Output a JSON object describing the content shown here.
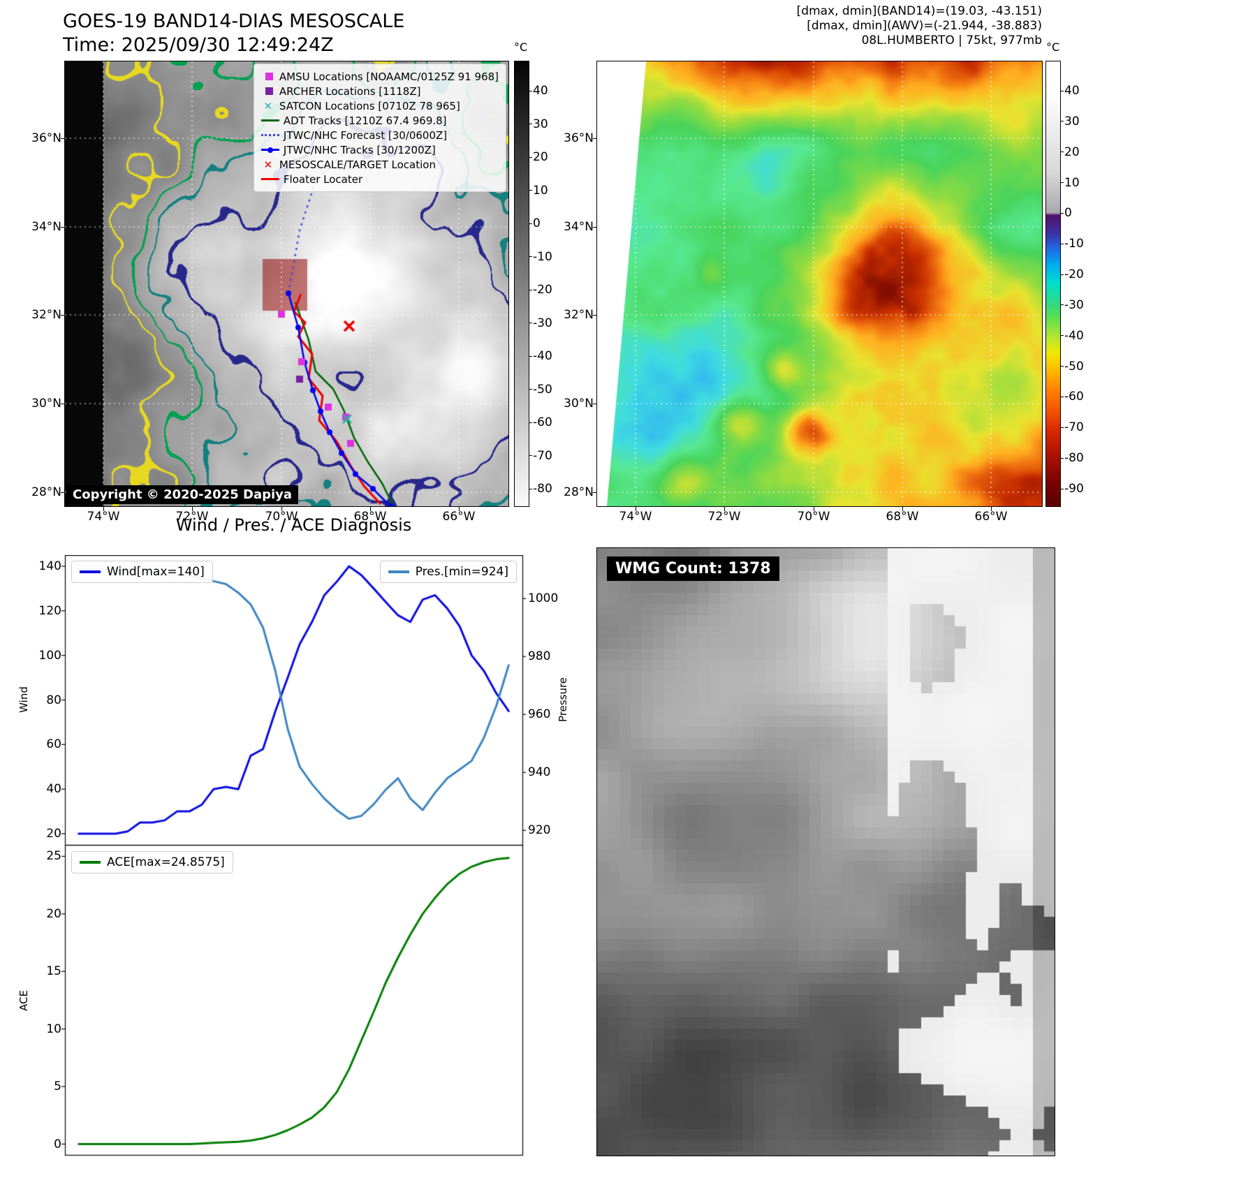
{
  "panel_tl": {
    "title_line1": "GOES-19 BAND14-DIAS MESOSCALE",
    "title_line2": "Time: 2025/09/30 12:49:24Z",
    "copyright": "Copyright © 2020-2025 Dapiya",
    "axes": {
      "lat_ticks": [
        "36°N",
        "34°N",
        "32°N",
        "30°N",
        "28°N"
      ],
      "lon_ticks": [
        "74°W",
        "72°W",
        "70°W",
        "68°W",
        "66°W"
      ]
    },
    "colorbar": {
      "unit": "°C",
      "ticks": [
        40,
        30,
        20,
        10,
        0,
        -10,
        -20,
        -30,
        -40,
        -50,
        -60,
        -70,
        -80
      ],
      "gradient": [
        [
          "0%",
          "#050505"
        ],
        [
          "100%",
          "#fafafa"
        ]
      ]
    },
    "legend": [
      {
        "id": "amsu",
        "marker": "square",
        "color": "#dd33dd",
        "label": "AMSU Locations [NOAAMC/0125Z 91 968]"
      },
      {
        "id": "archer",
        "marker": "square",
        "color": "#7a1fa2",
        "label": "ARCHER Locations [1118Z]"
      },
      {
        "id": "satcon",
        "marker": "x",
        "color": "#20b2aa",
        "label": "SATCON Locations [0710Z 78 965]"
      },
      {
        "id": "adt",
        "marker": "line",
        "color": "#006400",
        "label": "ADT Tracks [1210Z 67.4 969.8]"
      },
      {
        "id": "jtwc-forecast",
        "marker": "dotted",
        "color": "#4444dd",
        "label": "JTWC/NHC Forecast [30/0600Z]"
      },
      {
        "id": "jtwc-tracks",
        "marker": "linedot",
        "color": "#0000ee",
        "label": "JTWC/NHC Tracks [30/1200Z]"
      },
      {
        "id": "target",
        "marker": "x",
        "color": "#ee0000",
        "label": "MESOSCALE/TARGET Location"
      },
      {
        "id": "floater",
        "marker": "line",
        "color": "#ee0000",
        "label": "Floater Locater"
      }
    ]
  },
  "panel_tr": {
    "header_line1": "[dmax, dmin](BAND14)=(19.03, -43.151)",
    "header_line2": "[dmax, dmin](AWV)=(-21.944, -38.883)",
    "header_line3": "08L.HUMBERTO | 75kt, 977mb",
    "axes": {
      "lat_ticks": [
        "36°N",
        "34°N",
        "32°N",
        "30°N",
        "28°N"
      ],
      "lon_ticks": [
        "74°W",
        "72°W",
        "70°W",
        "68°W",
        "66°W"
      ]
    },
    "colorbar": {
      "unit": "°C",
      "ticks": [
        40,
        30,
        20,
        10,
        0,
        -10,
        -20,
        -30,
        -40,
        -50,
        -60,
        -70,
        -80,
        -90
      ],
      "gradient": [
        [
          "0%",
          "#ffffff"
        ],
        [
          "7%",
          "#ffffff"
        ],
        [
          "25%",
          "#d8d8d8"
        ],
        [
          "34%",
          "#a8a8b0"
        ],
        [
          "34.6%",
          "#50106a"
        ],
        [
          "39%",
          "#3a35aa"
        ],
        [
          "42%",
          "#2268e0"
        ],
        [
          "45.5%",
          "#00a8f0"
        ],
        [
          "50%",
          "#00e0cc"
        ],
        [
          "55%",
          "#38d878"
        ],
        [
          "58%",
          "#64e04c"
        ],
        [
          "62%",
          "#b4e632"
        ],
        [
          "65.5%",
          "#f0e800"
        ],
        [
          "70%",
          "#ffb400"
        ],
        [
          "74%",
          "#ff8000"
        ],
        [
          "79%",
          "#f05000"
        ],
        [
          "83%",
          "#d82800"
        ],
        [
          "89%",
          "#a81000"
        ],
        [
          "96%",
          "#700000"
        ],
        [
          "100%",
          "#5c0000"
        ]
      ]
    }
  },
  "panel_bl": {
    "title": "Wind / Pres. / ACE Diagnosis",
    "wind_legend": "Wind[max=140]",
    "pres_legend": "Pres.[min=924]",
    "ace_legend": "ACE[max=24.8575]"
  },
  "panel_br": {
    "wmg_label": "WMG Count: 1378"
  },
  "chart_data": [
    {
      "type": "line",
      "panel": "wind_pressure",
      "title": "Wind / Pres. / ACE Diagnosis",
      "x_axis": {
        "range": [
          0,
          100
        ],
        "ticks": []
      },
      "series": [
        {
          "name": "Wind[max=140]",
          "color": "#0b0bdf",
          "axis": "left",
          "ylabel": "Wind",
          "ylim": [
            15,
            145
          ],
          "yticks": [
            20,
            40,
            60,
            80,
            100,
            120,
            140
          ],
          "x": [
            3.0,
            5.7,
            8.4,
            11.1,
            13.7,
            16.4,
            19.1,
            21.8,
            24.5,
            27.2,
            29.9,
            32.5,
            35.2,
            37.9,
            40.6,
            43.3,
            46.0,
            48.7,
            51.3,
            54.0,
            56.7,
            59.4,
            62.1,
            64.8,
            67.5,
            70.1,
            72.8,
            75.5,
            78.2,
            80.9,
            83.6,
            86.3,
            88.9,
            91.6,
            94.3,
            97.0
          ],
          "values": [
            20,
            20,
            20,
            20,
            21,
            25,
            25,
            26,
            30,
            30,
            33,
            40,
            41,
            40,
            55,
            58,
            75,
            90,
            105,
            115,
            127,
            133,
            140,
            136,
            130,
            124,
            118,
            115,
            125,
            127,
            121,
            113,
            100,
            93,
            83,
            75
          ]
        },
        {
          "name": "Pres.[min=924]",
          "color": "#3d85c0",
          "axis": "right",
          "ylabel": "Pressure",
          "ylim": [
            915,
            1015
          ],
          "yticks": [
            920,
            940,
            960,
            980,
            1000
          ],
          "x": [
            3.0,
            5.7,
            8.4,
            11.1,
            13.7,
            16.4,
            19.1,
            21.8,
            24.5,
            27.2,
            29.9,
            32.5,
            35.2,
            37.9,
            40.6,
            43.3,
            46.0,
            48.7,
            51.3,
            54.0,
            56.7,
            59.4,
            62.1,
            64.8,
            67.5,
            70.1,
            72.8,
            75.5,
            78.2,
            80.9,
            83.6,
            86.3,
            88.9,
            91.6,
            94.3,
            97.0
          ],
          "values": [
            1010,
            1010,
            1010,
            1010,
            1009,
            1009,
            1009,
            1008,
            1008,
            1008,
            1007,
            1006,
            1005,
            1002,
            998,
            990,
            975,
            955,
            942,
            936,
            931,
            927,
            924,
            925,
            929,
            934,
            938,
            931,
            927,
            933,
            938,
            941,
            944,
            952,
            963,
            977
          ]
        }
      ]
    },
    {
      "type": "line",
      "panel": "ace",
      "series": [
        {
          "name": "ACE[max=24.8575]",
          "color": "#007d00",
          "axis": "left",
          "ylabel": "ACE",
          "ylim": [
            -1,
            26
          ],
          "yticks": [
            0,
            5,
            10,
            15,
            20,
            25
          ],
          "x": [
            3.0,
            5.7,
            8.4,
            11.1,
            13.7,
            16.4,
            19.1,
            21.8,
            24.5,
            27.2,
            29.9,
            32.5,
            35.2,
            37.9,
            40.6,
            43.3,
            46.0,
            48.7,
            51.3,
            54.0,
            56.7,
            59.4,
            62.1,
            64.8,
            67.5,
            70.1,
            72.8,
            75.5,
            78.2,
            80.9,
            83.6,
            86.3,
            88.9,
            91.6,
            94.3,
            97.0
          ],
          "values": [
            0,
            0,
            0,
            0,
            0,
            0,
            0,
            0,
            0,
            0,
            0.05,
            0.1,
            0.15,
            0.2,
            0.3,
            0.5,
            0.8,
            1.2,
            1.7,
            2.3,
            3.2,
            4.5,
            6.5,
            9,
            11.5,
            14,
            16.2,
            18.2,
            20,
            21.4,
            22.6,
            23.5,
            24.1,
            24.5,
            24.75,
            24.8575
          ]
        }
      ]
    }
  ]
}
